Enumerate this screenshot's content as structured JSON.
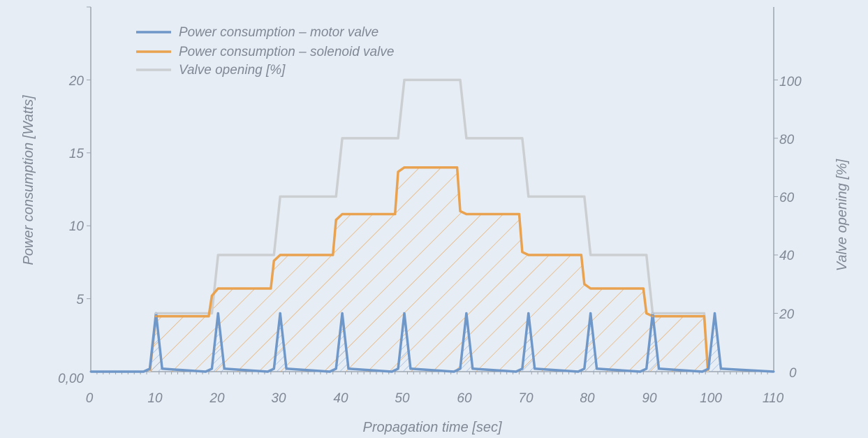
{
  "chart_data": {
    "type": "line",
    "xlabel": "Propagation time [sec]",
    "ylabel": "Power consumption [Watts]",
    "y2label": "Valve opening [%]",
    "x_ticks": [
      "0",
      "10",
      "20",
      "30",
      "40",
      "50",
      "60",
      "70",
      "80",
      "90",
      "100",
      "110"
    ],
    "y_ticks": [
      "0,00",
      "5",
      "10",
      "15",
      "20"
    ],
    "y2_ticks": [
      "0",
      "20",
      "40",
      "60",
      "80",
      "100"
    ],
    "xlim": [
      0,
      110
    ],
    "ylim": [
      0,
      25
    ],
    "y2lim": [
      0,
      125
    ],
    "grid": false,
    "legend_position": "top-left",
    "series": [
      {
        "name": "Power consumption – motor valve",
        "color": "#6f97c8",
        "axis": "left",
        "x": [
          0,
          8.5,
          9.5,
          10.5,
          11.5,
          18.5,
          19.5,
          20.5,
          21.5,
          28.5,
          29.5,
          30.5,
          31.5,
          38.5,
          39.5,
          40.5,
          41.5,
          48.5,
          49.5,
          50.5,
          51.5,
          58.5,
          59.5,
          60.5,
          61.5,
          68.5,
          69.5,
          70.5,
          71.5,
          78.5,
          79.5,
          80.5,
          81.5,
          88.5,
          89.5,
          90.5,
          91.5,
          98.5,
          99.5,
          100.5,
          101.5,
          110
        ],
        "y": [
          0,
          0,
          0.2,
          4,
          0.2,
          0,
          0.2,
          4,
          0.2,
          0,
          0.2,
          4,
          0.2,
          0,
          0.2,
          4,
          0.2,
          0,
          0.2,
          4,
          0.2,
          0,
          0.2,
          4,
          0.2,
          0,
          0.2,
          4,
          0.2,
          0,
          0.2,
          4,
          0.2,
          0,
          0.2,
          4,
          0.2,
          0,
          0.2,
          4,
          0.2,
          0
        ]
      },
      {
        "name": "Power consumption – solenoid valve",
        "color": "#e9a24f",
        "axis": "left",
        "x": [
          9.5,
          10.5,
          19,
          19.5,
          20.5,
          29,
          29.5,
          30.5,
          39,
          39.5,
          40.5,
          49,
          49.5,
          50.5,
          59,
          59.5,
          60.5,
          69,
          69.5,
          70.5,
          79,
          79.5,
          80.5,
          89,
          89.5,
          90.5,
          98.8,
          99.4
        ],
        "y": [
          0,
          3.8,
          3.8,
          5.2,
          5.7,
          5.7,
          7.6,
          8,
          8,
          10.4,
          10.8,
          10.8,
          13.7,
          14,
          14,
          11,
          10.8,
          10.8,
          8.2,
          8,
          8,
          6,
          5.7,
          5.7,
          4,
          3.8,
          3.8,
          0
        ]
      },
      {
        "name": "Valve opening [%]",
        "color": "#cccfd2",
        "axis": "right",
        "x": [
          9.5,
          10.5,
          19.5,
          20.5,
          29.5,
          30.5,
          39.5,
          40.5,
          49.5,
          50.5,
          59.5,
          60.5,
          69.5,
          70.5,
          79.5,
          80.5,
          89.5,
          90.5,
          98.8,
          99.4
        ],
        "y": [
          0,
          20,
          20,
          40,
          40,
          60,
          60,
          80,
          80,
          100,
          100,
          80,
          80,
          60,
          60,
          40,
          40,
          20,
          20,
          0
        ]
      }
    ]
  }
}
